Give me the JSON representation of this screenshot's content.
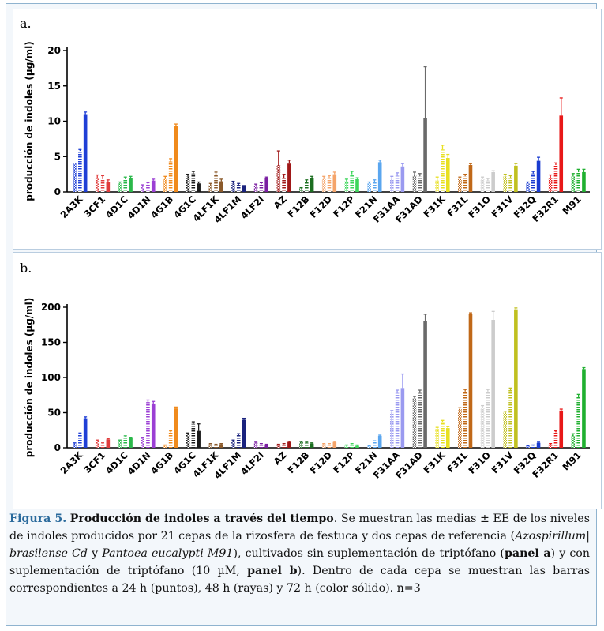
{
  "figure": {
    "panel_a_label": "a.",
    "panel_b_label": "b."
  },
  "caption": {
    "figure_number": "Figura 5.",
    "title": "Producción de indoles a través del tiempo",
    "p1": ". Se muestran las medias ± EE de los niveles de indoles producidos por 21 cepas de la rizosfera de festuca y dos cepas de referencia (",
    "sp1": "Azospirillum",
    "p2": "| ",
    "sp2": "brasilense Cd",
    "p3": " y ",
    "sp3": "Pantoea eucalypti M91",
    "p4": "), cultivados sin suplementación de triptófano (",
    "panel_a_bold": "panel a",
    "p5": ") y con suplementación de triptófano (10 µM, ",
    "panel_b_bold": "panel b",
    "p6": "). Dentro de cada cepa se muestran las barras correspondientes a 24 h (puntos), 48 h (rayas) y 72 h (color sólido). n=3"
  },
  "chart_data": [
    {
      "panel": "a",
      "type": "bar",
      "ylabel": "producción de indoles (µg/ml)",
      "ylim": [
        0,
        20
      ],
      "yticks": [
        0,
        5,
        10,
        15,
        20
      ],
      "categories": [
        "2A3K",
        "3CF1",
        "4D1C",
        "4D1N",
        "4G1B",
        "4G1C",
        "4LF1K",
        "4LF1M",
        "4LF2I",
        "AZ",
        "F12B",
        "F12D",
        "F12P",
        "F21N",
        "F31AA",
        "F31AD",
        "F31K",
        "F31L",
        "F31O",
        "F31V",
        "F32Q",
        "F32R1",
        "M91"
      ],
      "colors": [
        "#1f3fd6",
        "#e03c3c",
        "#2ab84a",
        "#9b3fd4",
        "#f08a1c",
        "#1a1a1a",
        "#8b5a2b",
        "#1a237e",
        "#7b1fa2",
        "#a01818",
        "#1b6e20",
        "#f5a46a",
        "#3cd65a",
        "#5aa6ef",
        "#9a9af0",
        "#6a6a6a",
        "#e8e020",
        "#c06818",
        "#cccccc",
        "#c0c020",
        "#1a3cd0",
        "#e81818",
        "#20b030"
      ],
      "series": [
        {
          "name": "24 h",
          "values": [
            4.0,
            2.0,
            1.2,
            0.7,
            1.8,
            2.2,
            1.0,
            1.2,
            0.9,
            3.8,
            0.5,
            1.8,
            1.5,
            1.2,
            1.8,
            2.4,
            1.6,
            1.8,
            1.8,
            2.2,
            1.2,
            2.0,
            2.2
          ]
        },
        {
          "name": "48 h",
          "values": [
            5.8,
            1.8,
            1.8,
            1.1,
            4.3,
            2.6,
            2.4,
            1.0,
            1.1,
            2.0,
            1.4,
            2.0,
            2.5,
            1.4,
            2.3,
            2.2,
            6.0,
            2.2,
            1.6,
            2.0,
            2.6,
            3.8,
            2.8
          ]
        },
        {
          "name": "72 h",
          "values": [
            11.0,
            1.4,
            2.0,
            1.6,
            9.3,
            1.2,
            1.5,
            0.8,
            1.9,
            4.0,
            2.0,
            2.5,
            1.8,
            4.2,
            3.6,
            10.5,
            4.8,
            3.8,
            2.8,
            3.7,
            4.4,
            10.8,
            2.8
          ]
        }
      ],
      "errors": [
        [
          0,
          0.4,
          0.2,
          0.3,
          0.4,
          0.3,
          0.2,
          0.3,
          0.2,
          2.0,
          0.1,
          0.4,
          0.3,
          0.2,
          0.4,
          0.4,
          0.5,
          0.3,
          0.3,
          0.3,
          0.2,
          0.4,
          0.4
        ],
        [
          0.2,
          0.5,
          0.3,
          0.2,
          0.4,
          0.3,
          0.4,
          0.2,
          0.2,
          0.5,
          0.3,
          0.3,
          0.4,
          0.3,
          0.4,
          0.4,
          0.6,
          0.3,
          0.3,
          0.3,
          0.3,
          0.3,
          0.4
        ],
        [
          0.3,
          0.3,
          0.2,
          0.2,
          0.3,
          0.2,
          0.3,
          0.1,
          0.2,
          0.5,
          0.2,
          0.3,
          0.2,
          0.3,
          0.4,
          7.2,
          0.5,
          0.2,
          0.2,
          0.3,
          0.5,
          2.5,
          0.4
        ]
      ]
    },
    {
      "panel": "b",
      "type": "bar",
      "ylabel": "producción de indoles (µg/ml)",
      "ylim": [
        0,
        200
      ],
      "yticks": [
        0,
        50,
        100,
        150,
        200
      ],
      "categories": [
        "2A3K",
        "3CF1",
        "4D1C",
        "4D1N",
        "4G1B",
        "4G1C",
        "4LF1K",
        "4LF1M",
        "4LF2I",
        "AZ",
        "F12B",
        "F12D",
        "F12P",
        "F21N",
        "F31AA",
        "F31AD",
        "F31K",
        "F31L",
        "F31O",
        "F31V",
        "F32Q",
        "F32R1",
        "M91"
      ],
      "colors": [
        "#1f3fd6",
        "#e03c3c",
        "#2ab84a",
        "#9b3fd4",
        "#f08a1c",
        "#1a1a1a",
        "#8b5a2b",
        "#1a237e",
        "#7b1fa2",
        "#a01818",
        "#1b6e20",
        "#f5a46a",
        "#3cd65a",
        "#5aa6ef",
        "#9a9af0",
        "#6a6a6a",
        "#e8e020",
        "#c06818",
        "#cccccc",
        "#c0c020",
        "#1a3cd0",
        "#e81818",
        "#20b030"
      ],
      "series": [
        {
          "name": "24 h",
          "values": [
            6,
            10,
            10,
            14,
            3,
            19,
            5,
            10,
            7,
            4,
            8,
            5,
            3,
            2,
            50,
            70,
            27,
            55,
            57,
            50,
            2,
            5,
            18
          ]
        },
        {
          "name": "48 h",
          "values": [
            20,
            6,
            16,
            65,
            22,
            34,
            4,
            18,
            5,
            5,
            7,
            5,
            5,
            9,
            78,
            78,
            37,
            80,
            80,
            82,
            3,
            22,
            72
          ]
        },
        {
          "name": "72 h",
          "values": [
            42,
            12,
            14,
            63,
            56,
            24,
            5,
            40,
            4,
            8,
            6,
            8,
            3,
            17,
            85,
            180,
            28,
            190,
            182,
            197,
            7,
            53,
            112
          ]
        }
      ],
      "errors": [
        [
          1,
          1,
          1,
          1,
          1,
          2,
          1,
          1,
          1,
          1,
          1,
          1,
          1,
          1,
          3,
          3,
          2,
          2,
          3,
          2,
          1,
          1,
          2
        ],
        [
          1,
          1,
          1,
          3,
          2,
          3,
          1,
          2,
          1,
          1,
          1,
          1,
          1,
          1,
          4,
          4,
          2,
          3,
          3,
          3,
          1,
          2,
          4
        ],
        [
          2,
          1,
          1,
          3,
          2,
          10,
          1,
          2,
          1,
          1,
          1,
          1,
          1,
          1,
          20,
          10,
          2,
          2,
          12,
          2,
          1,
          2,
          2
        ]
      ]
    }
  ]
}
